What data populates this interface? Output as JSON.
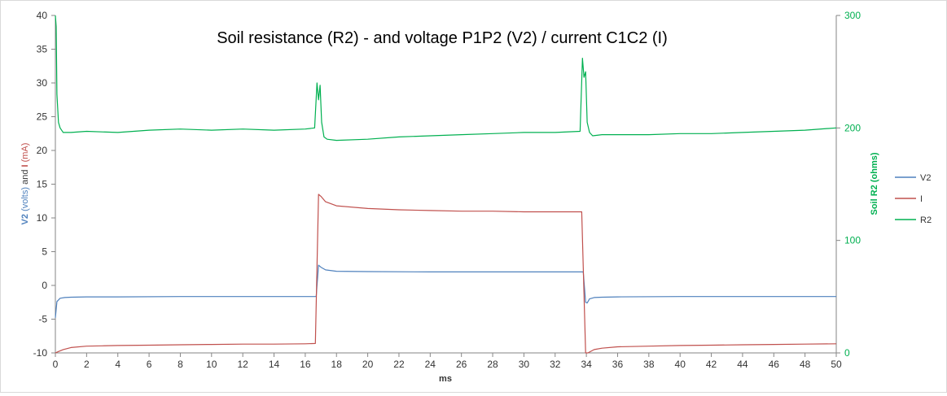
{
  "chart_data": {
    "type": "line",
    "title": "Soil resistance (R2) - and voltage P1P2 (V2) / current C1C2 (I)",
    "xlabel": "ms",
    "ylabel_parts": [
      {
        "text": "V2 ",
        "bold": true,
        "color": "#4f81bd"
      },
      {
        "text": "(volts)",
        "bold": false,
        "color": "#4f81bd"
      },
      {
        "text": " and ",
        "bold": false,
        "color": "#404040"
      },
      {
        "text": "I ",
        "bold": true,
        "color": "#c0504d"
      },
      {
        "text": "(mA)",
        "bold": false,
        "color": "#c0504d"
      }
    ],
    "y2label": "Soil R2 (ohms)",
    "xlim": [
      0,
      50
    ],
    "ylim": [
      -10,
      40
    ],
    "y2lim": [
      0,
      300
    ],
    "x_ticks": [
      0,
      2,
      4,
      6,
      8,
      10,
      12,
      14,
      16,
      18,
      20,
      22,
      24,
      26,
      28,
      30,
      32,
      34,
      36,
      38,
      40,
      42,
      44,
      46,
      48,
      50
    ],
    "y_ticks": [
      -10,
      -5,
      0,
      5,
      10,
      15,
      20,
      25,
      30,
      35,
      40
    ],
    "y2_ticks": [
      0,
      100,
      200,
      300
    ],
    "grid": false,
    "legend_position": "right",
    "series": [
      {
        "name": "V2",
        "axis": "left",
        "color": "#4f81bd",
        "x": [
          0,
          0.1,
          0.3,
          0.6,
          1,
          2,
          4,
          8,
          12,
          16,
          16.7,
          16.85,
          17,
          17.3,
          18,
          20,
          24,
          28,
          32,
          33.8,
          33.95,
          34.05,
          34.2,
          34.5,
          35,
          36,
          40,
          45,
          50
        ],
        "values": [
          -4.8,
          -2.4,
          -1.9,
          -1.8,
          -1.75,
          -1.7,
          -1.7,
          -1.65,
          -1.65,
          -1.65,
          -1.65,
          3.0,
          2.7,
          2.3,
          2.1,
          2.05,
          2.0,
          2.0,
          2.0,
          2.0,
          -2.5,
          -2.6,
          -2.0,
          -1.8,
          -1.75,
          -1.7,
          -1.65,
          -1.65,
          -1.65
        ]
      },
      {
        "name": "I",
        "axis": "left",
        "color": "#c0504d",
        "x": [
          0,
          0.2,
          0.5,
          1,
          2,
          3,
          4,
          6,
          8,
          10,
          12,
          14,
          16,
          16.65,
          16.85,
          17,
          17.3,
          18,
          20,
          22,
          24,
          26,
          28,
          30,
          32,
          33.7,
          33.95,
          34.1,
          34.5,
          35,
          36,
          38,
          40,
          42,
          44,
          46,
          48,
          50
        ],
        "values": [
          -10,
          -9.8,
          -9.5,
          -9.2,
          -9.0,
          -8.95,
          -8.9,
          -8.85,
          -8.8,
          -8.75,
          -8.7,
          -8.7,
          -8.65,
          -8.6,
          13.5,
          13.2,
          12.4,
          11.8,
          11.4,
          11.2,
          11.1,
          11.0,
          11.0,
          10.9,
          10.9,
          10.9,
          -10.0,
          -10.0,
          -9.5,
          -9.3,
          -9.1,
          -9.0,
          -8.9,
          -8.85,
          -8.8,
          -8.75,
          -8.7,
          -8.65
        ]
      },
      {
        "name": "R2",
        "axis": "right",
        "color": "#00b050",
        "x": [
          0,
          0.05,
          0.1,
          0.2,
          0.3,
          0.5,
          1,
          2,
          4,
          6,
          8,
          10,
          12,
          14,
          16,
          16.6,
          16.75,
          16.85,
          16.95,
          17.05,
          17.2,
          17.4,
          18,
          20,
          22,
          24,
          26,
          28,
          30,
          32,
          33.6,
          33.75,
          33.85,
          33.95,
          34.05,
          34.2,
          34.4,
          35,
          36,
          38,
          40,
          42,
          44,
          46,
          48,
          50
        ],
        "values": [
          300,
          290,
          230,
          205,
          200,
          196,
          196,
          197,
          196,
          198,
          199,
          198,
          199,
          198,
          199,
          200,
          240,
          225,
          238,
          205,
          192,
          190,
          189,
          190,
          192,
          193,
          194,
          195,
          196,
          196,
          197,
          262,
          245,
          250,
          205,
          196,
          193,
          194,
          194,
          194,
          195,
          195,
          196,
          197,
          198,
          200
        ]
      }
    ]
  }
}
